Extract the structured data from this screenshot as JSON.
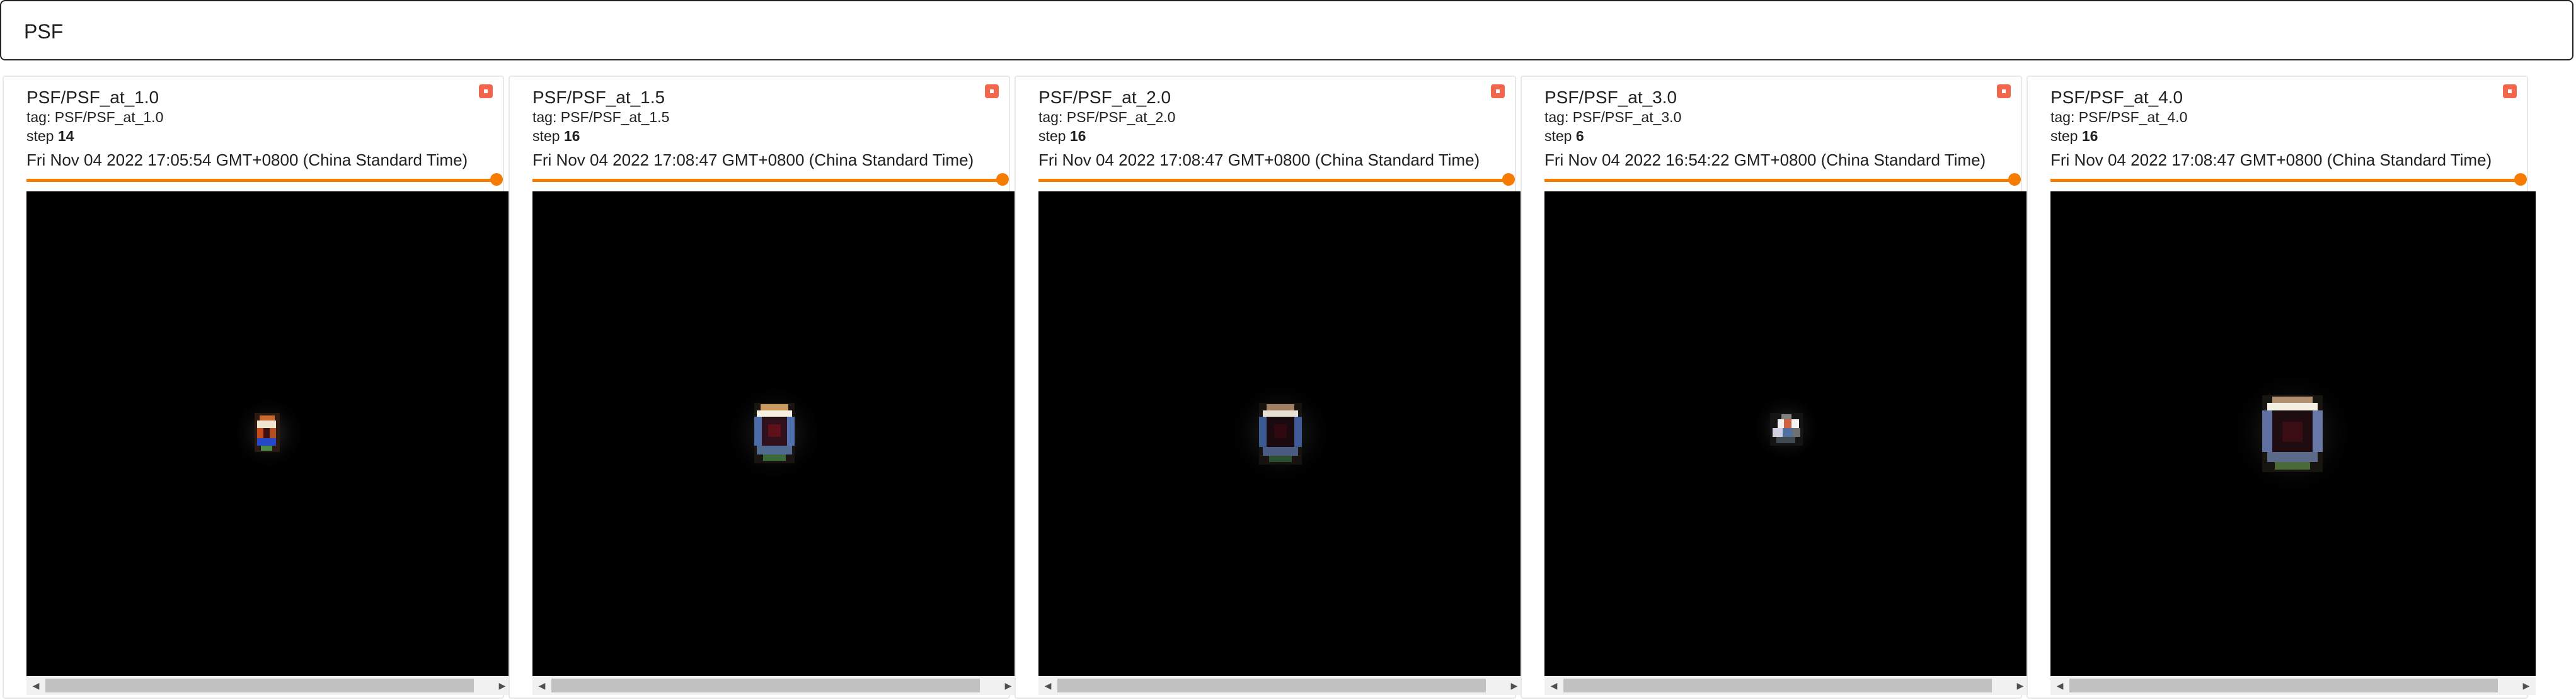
{
  "filter": {
    "value": "PSF"
  },
  "cards": [
    {
      "title": "PSF/PSF_at_1.0",
      "tag_label": "tag:",
      "tag": "PSF/PSF_at_1.0",
      "step_label": "step",
      "step": "14",
      "timestamp": "Fri Nov 04 2022 17:05:54 GMT+0800 (China Standard Time)",
      "slider_value": 1.0
    },
    {
      "title": "PSF/PSF_at_1.5",
      "tag_label": "tag:",
      "tag": "PSF/PSF_at_1.5",
      "step_label": "step",
      "step": "16",
      "timestamp": "Fri Nov 04 2022 17:08:47 GMT+0800 (China Standard Time)",
      "slider_value": 1.0
    },
    {
      "title": "PSF/PSF_at_2.0",
      "tag_label": "tag:",
      "tag": "PSF/PSF_at_2.0",
      "step_label": "step",
      "step": "16",
      "timestamp": "Fri Nov 04 2022 17:08:47 GMT+0800 (China Standard Time)",
      "slider_value": 1.0
    },
    {
      "title": "PSF/PSF_at_3.0",
      "tag_label": "tag:",
      "tag": "PSF/PSF_at_3.0",
      "step_label": "step",
      "step": "6",
      "timestamp": "Fri Nov 04 2022 16:54:22 GMT+0800 (China Standard Time)",
      "slider_value": 1.0
    },
    {
      "title": "PSF/PSF_at_4.0",
      "tag_label": "tag:",
      "tag": "PSF/PSF_at_4.0",
      "step_label": "step",
      "step": "16",
      "timestamp": "Fri Nov 04 2022 17:08:47 GMT+0800 (China Standard Time)",
      "slider_value": 1.0
    }
  ],
  "icons": {
    "menu": "menu-square-icon",
    "scroll_left": "chevron-left-icon",
    "scroll_right": "chevron-right-icon"
  },
  "colors": {
    "accent": "#f57c00",
    "menu": "#f2664d",
    "image_bg": "#000000"
  }
}
